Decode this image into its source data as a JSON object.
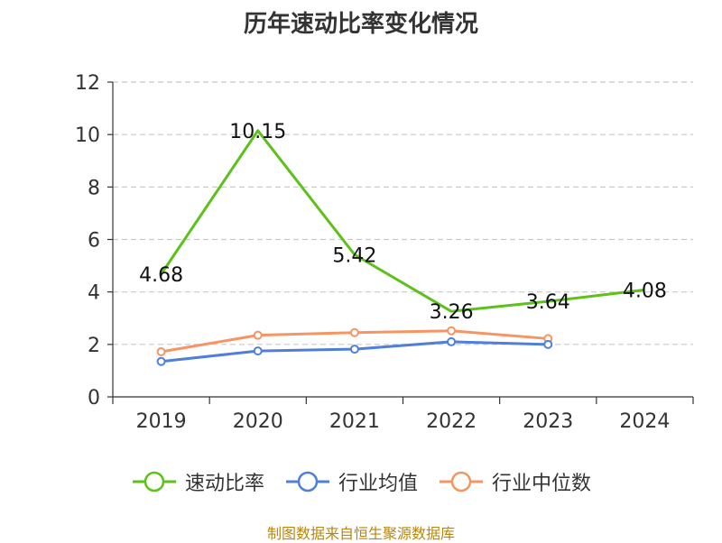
{
  "source_text": "制图数据来自恒生聚源数据库",
  "source_color": "#b8860b",
  "chart_data": {
    "type": "line",
    "title": "历年速动比率变化情况",
    "categories": [
      "2019",
      "2020",
      "2021",
      "2022",
      "2023",
      "2024"
    ],
    "ylim": [
      0,
      12
    ],
    "yticks": [
      0,
      2,
      4,
      6,
      8,
      10,
      12
    ],
    "ytick_labels": [
      "0",
      "2",
      "4",
      "6",
      "8",
      "10",
      "12"
    ],
    "grid": true,
    "legend_position": "bottom",
    "series": [
      {
        "name": "速动比率",
        "color": "#5cc21a",
        "values": [
          4.68,
          10.15,
          5.42,
          3.26,
          3.64,
          4.08
        ],
        "labels": [
          "4.68",
          "10.15",
          "5.42",
          "3.26",
          "3.64",
          "4.08"
        ],
        "show_markers": false
      },
      {
        "name": "行业均值",
        "color": "#4f7fd9",
        "values": [
          1.35,
          1.75,
          1.82,
          2.1,
          2.0,
          null
        ],
        "show_markers": true
      },
      {
        "name": "行业中位数",
        "color": "#f59563",
        "values": [
          1.72,
          2.35,
          2.45,
          2.52,
          2.22,
          null
        ],
        "show_markers": true
      }
    ]
  }
}
